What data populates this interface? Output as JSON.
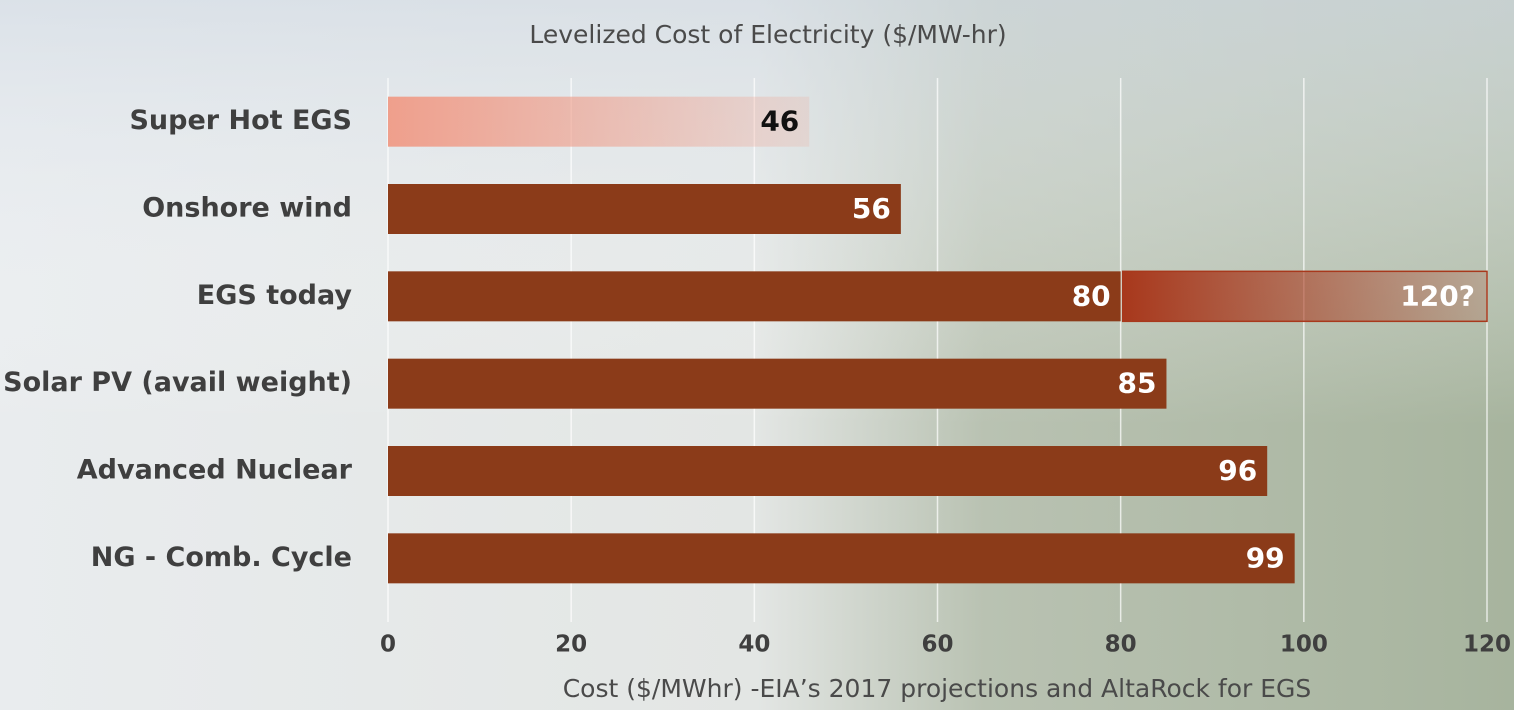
{
  "chart_data": {
    "type": "hbar",
    "title": "Levelized Cost of Electricity ($/MW-hr)",
    "x_label": "Cost ($/MWhr) -EIA’s 2017 projections and AltaRock for EGS",
    "categories": [
      "Super Hot EGS",
      "Onshore wind",
      "EGS today",
      "Solar PV (avail weight)",
      "Advanced Nuclear",
      "NG  - Comb. Cycle"
    ],
    "values": [
      46,
      56,
      80,
      85,
      96,
      99
    ],
    "colors": [
      "#ef9f8c",
      "#8b3b19",
      "#8b3b19",
      "#8b3b19",
      "#8b3b19",
      "#8b3b19"
    ],
    "faded": [
      true,
      false,
      false,
      false,
      false,
      false
    ],
    "value_label_colors": [
      "#111111",
      "#ffffff",
      "#ffffff",
      "#ffffff",
      "#ffffff",
      "#ffffff"
    ],
    "upper_values": [
      null,
      null,
      120,
      null,
      null,
      null
    ],
    "upper_value_labels": [
      null,
      null,
      "120?",
      null,
      null,
      null
    ],
    "upper_color": "#a8381c",
    "xlim": [
      0,
      120
    ],
    "xticks": [
      0,
      20,
      40,
      60,
      80,
      100,
      120
    ],
    "grid": true
  }
}
